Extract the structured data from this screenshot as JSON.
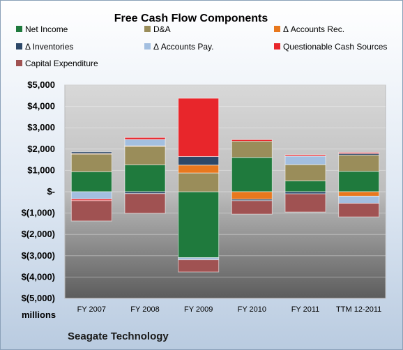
{
  "chart_data": {
    "type": "bar",
    "stacked": true,
    "title": "Free Cash Flow Components",
    "unit_label": "millions",
    "company": "Seagate Technology",
    "categories": [
      "FY 2007",
      "FY 2008",
      "FY 2009",
      "FY 2010",
      "FY 2011",
      "TTM 12-2011"
    ],
    "yticks": [
      "$5,000",
      "$4,000",
      "$3,000",
      "$2,000",
      "$1,000",
      "$-",
      "$(1,000)",
      "$(2,000)",
      "$(3,000)",
      "$(4,000)",
      "$(5,000)"
    ],
    "ylim": [
      -5000,
      5000
    ],
    "legend_position": "top",
    "series": [
      {
        "name": "Net Income",
        "color": "#1f7a3d",
        "values": [
          940,
          1260,
          -3090,
          1610,
          510,
          960
        ]
      },
      {
        "name": "D&A",
        "color": "#9a8d5a",
        "values": [
          840,
          880,
          880,
          760,
          760,
          760
        ]
      },
      {
        "name": "Δ Accounts Rec.",
        "color": "#e8781e",
        "values": [
          10,
          10,
          370,
          -350,
          0,
          -210
        ]
      },
      {
        "name": "Δ Inventories",
        "color": "#2d4868",
        "values": [
          80,
          -90,
          400,
          -70,
          -100,
          70
        ]
      },
      {
        "name": "Δ Accounts Pay.",
        "color": "#a3bfe0",
        "values": [
          -340,
          300,
          -100,
          0,
          400,
          -330
        ]
      },
      {
        "name": "Questionable Cash Sources",
        "color": "#e8262b",
        "values": [
          -80,
          90,
          2730,
          70,
          60,
          50
        ]
      },
      {
        "name": "Capital Expenditure",
        "color": "#a05252",
        "values": [
          -950,
          -920,
          -570,
          -630,
          -850,
          -640
        ]
      }
    ]
  }
}
